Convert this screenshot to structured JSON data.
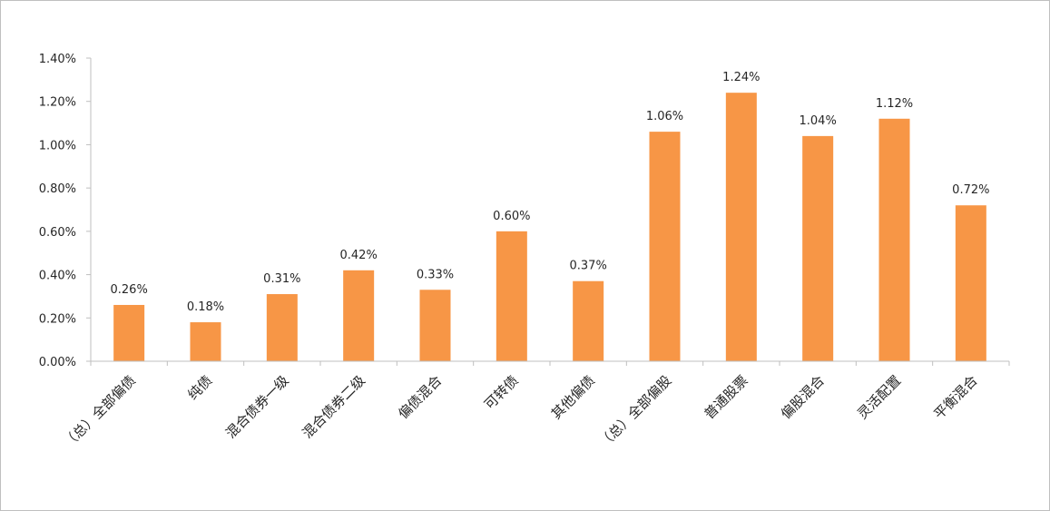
{
  "chart_data": {
    "type": "bar",
    "title": "",
    "xlabel": "",
    "ylabel": "",
    "categories": [
      "（总）全部偏债",
      "纯债",
      "混合债券一级",
      "混合债券二级",
      "偏债混合",
      "可转债",
      "其他偏债",
      "（总）全部偏股",
      "普通股票",
      "偏股混合",
      "灵活配置",
      "平衡混合"
    ],
    "values": [
      0.26,
      0.18,
      0.31,
      0.42,
      0.33,
      0.6,
      0.37,
      1.06,
      1.24,
      1.04,
      1.12,
      0.72
    ],
    "data_labels": [
      "0.26%",
      "0.18%",
      "0.31%",
      "0.42%",
      "0.33%",
      "0.60%",
      "0.37%",
      "1.06%",
      "1.24%",
      "1.04%",
      "1.12%",
      "0.72%"
    ],
    "ylim": [
      0,
      1.4
    ],
    "y_ticks": [
      0,
      0.2,
      0.4,
      0.6,
      0.8,
      1.0,
      1.2,
      1.4
    ],
    "y_tick_labels": [
      "0.00%",
      "0.20%",
      "0.40%",
      "0.60%",
      "0.80%",
      "1.00%",
      "1.20%",
      "1.40%"
    ],
    "unit": "%",
    "grid": false,
    "legend": "none",
    "bar_color": "#F79646"
  }
}
